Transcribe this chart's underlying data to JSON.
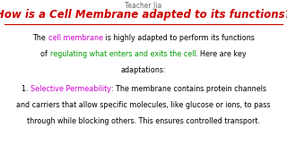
{
  "bg_color": "#ffffff",
  "teacher_label": "Teacher Jia",
  "teacher_color": "#666666",
  "teacher_fontsize": 5.5,
  "title": "How is a Cell Membrane adapted to its functions?",
  "title_color": "#cc0000",
  "title_fontsize": 8.5,
  "underline_color": "#cc0000",
  "line1_parts": [
    {
      "text": "The ",
      "color": "#000000",
      "bold": false
    },
    {
      "text": "cell membrane",
      "color": "#cc00cc",
      "bold": false
    },
    {
      "text": " is highly adapted to perform its functions",
      "color": "#000000",
      "bold": false
    }
  ],
  "line2_parts": [
    {
      "text": "of ",
      "color": "#000000",
      "bold": false
    },
    {
      "text": "regulating what enters and exits the cell",
      "color": "#009900",
      "bold": false
    },
    {
      "text": ". Here are key",
      "color": "#000000",
      "bold": false
    }
  ],
  "line3": "adaptations:",
  "line3_color": "#000000",
  "line4_parts": [
    {
      "text": "1. ",
      "color": "#000000",
      "bold": false
    },
    {
      "text": "Selective Permeability",
      "color": "#cc00cc",
      "bold": false
    },
    {
      "text": ": The membrane contains protein channels",
      "color": "#000000",
      "bold": false
    }
  ],
  "line5": "and carriers that allow specific molecules, like glucose or ions, to pass",
  "line5_color": "#000000",
  "line6": "through while blocking others. This ensures controlled transport.",
  "line6_color": "#000000",
  "body_fontsize": 5.8
}
